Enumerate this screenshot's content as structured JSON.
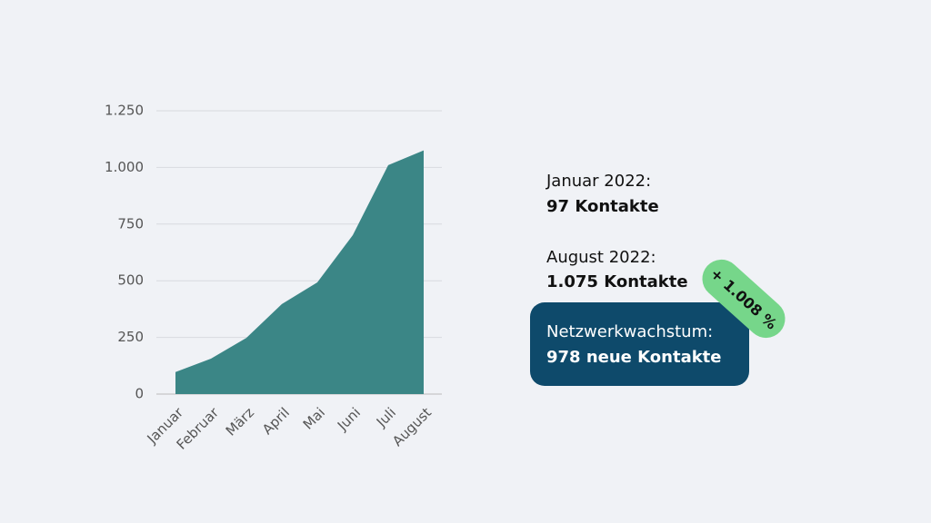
{
  "chart_data": {
    "type": "area",
    "categories": [
      "Januar",
      "Februar",
      "März",
      "April",
      "Mai",
      "Juni",
      "Juli",
      "August"
    ],
    "values": [
      97,
      156,
      248,
      397,
      493,
      701,
      1010,
      1075
    ],
    "color": "#3b8686",
    "ylim": [
      0,
      1250
    ],
    "yticks": [
      0,
      250,
      500,
      750,
      {
        "value": 1000,
        "label": "1.000"
      },
      {
        "value": 1250,
        "label": "1.250"
      }
    ],
    "grid": true
  },
  "summary": {
    "start_label": "Januar 2022:",
    "start_value": "97 Kontakte",
    "end_label": "August 2022:",
    "end_value": "1.075 Kontakte",
    "growth_label": "Netzwerkwachstum:",
    "growth_value": "978 neue Kontakte",
    "badge": "+ 1.008 %"
  }
}
